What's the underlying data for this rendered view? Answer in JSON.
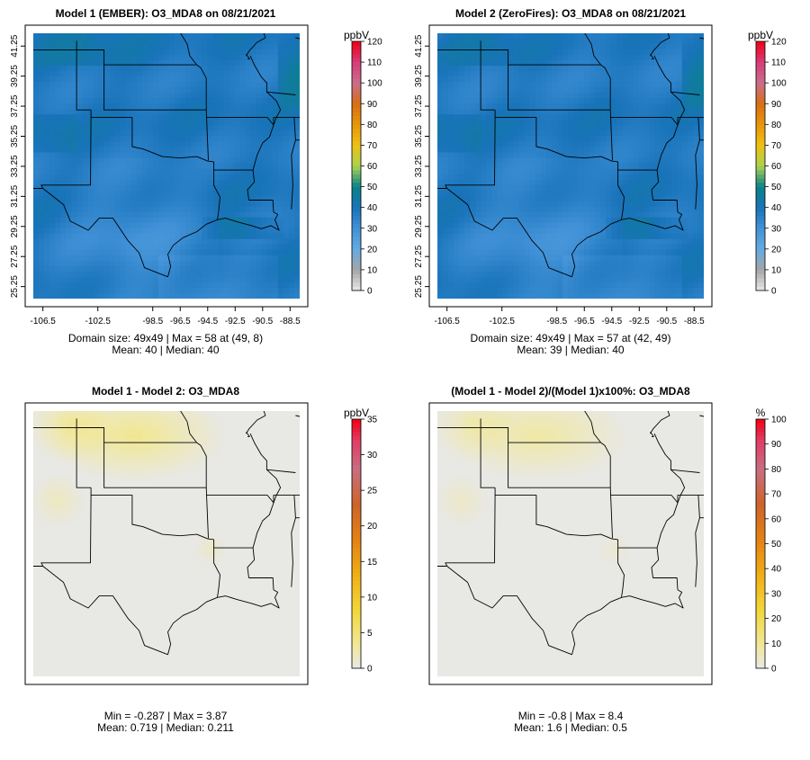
{
  "chart_data": [
    {
      "type": "heatmap",
      "title": "Model 1 (EMBER): O3_MDA8 on 08/21/2021",
      "legend_label": "ppbV",
      "scale": "concentration",
      "legend_ticks": [
        "0",
        "10",
        "20",
        "30",
        "40",
        "50",
        "60",
        "70",
        "80",
        "90",
        "100",
        "110",
        "120"
      ],
      "legend_range": [
        0,
        120
      ],
      "x_ticks": [
        "-106.5",
        "-102.5",
        "-98.5",
        "-96.5",
        "-94.5",
        "-92.5",
        "-90.5",
        "-88.5"
      ],
      "y_ticks": [
        "25.25",
        "27.25",
        "29.25",
        "31.25",
        "33.25",
        "35.25",
        "37.25",
        "39.25",
        "41.25"
      ],
      "stats_line1": "Domain size: 49x49 | Max = 58 at (49, 8)",
      "stats_line2": "Mean: 40 |  Median: 40",
      "field": {
        "mean": 40,
        "max": 58,
        "min": 28
      }
    },
    {
      "type": "heatmap",
      "title": "Model 2 (ZeroFires): O3_MDA8 on 08/21/2021",
      "legend_label": "ppbV",
      "scale": "concentration",
      "legend_ticks": [
        "0",
        "10",
        "20",
        "30",
        "40",
        "50",
        "60",
        "70",
        "80",
        "90",
        "100",
        "110",
        "120"
      ],
      "legend_range": [
        0,
        120
      ],
      "x_ticks": [
        "-106.5",
        "-102.5",
        "-98.5",
        "-96.5",
        "-94.5",
        "-92.5",
        "-90.5",
        "-88.5"
      ],
      "y_ticks": [
        "25.25",
        "27.25",
        "29.25",
        "31.25",
        "33.25",
        "35.25",
        "37.25",
        "39.25",
        "41.25"
      ],
      "stats_line1": "Domain size: 49x49 | Max = 57 at (42, 49)",
      "stats_line2": "Mean: 39 |  Median: 40",
      "field": {
        "mean": 39,
        "max": 57,
        "min": 28
      }
    },
    {
      "type": "heatmap",
      "title": "Model 1 - Model 2: O3_MDA8",
      "legend_label": "ppbV",
      "scale": "difference",
      "legend_ticks": [
        "0",
        "5",
        "10",
        "15",
        "20",
        "25",
        "30",
        "35"
      ],
      "legend_range": [
        0,
        35
      ],
      "stats_line1": "Min = -0.287 | Max = 3.87",
      "stats_line2": "Mean: 0.719 |  Median: 0.211",
      "field": {
        "mean": 0.719,
        "max": 3.87,
        "min": -0.287
      }
    },
    {
      "type": "heatmap",
      "title": "(Model 1 - Model 2)/(Model 1)x100%: O3_MDA8",
      "legend_label": "%",
      "scale": "difference",
      "legend_ticks": [
        "0",
        "10",
        "20",
        "30",
        "40",
        "50",
        "60",
        "70",
        "80",
        "90",
        "100"
      ],
      "legend_range": [
        0,
        100
      ],
      "stats_line1": "Min = -0.8 | Max = 8.4",
      "stats_line2": "Mean: 1.6 |  Median: 0.5",
      "field": {
        "mean": 1.6,
        "max": 8.4,
        "min": -0.8
      }
    }
  ]
}
